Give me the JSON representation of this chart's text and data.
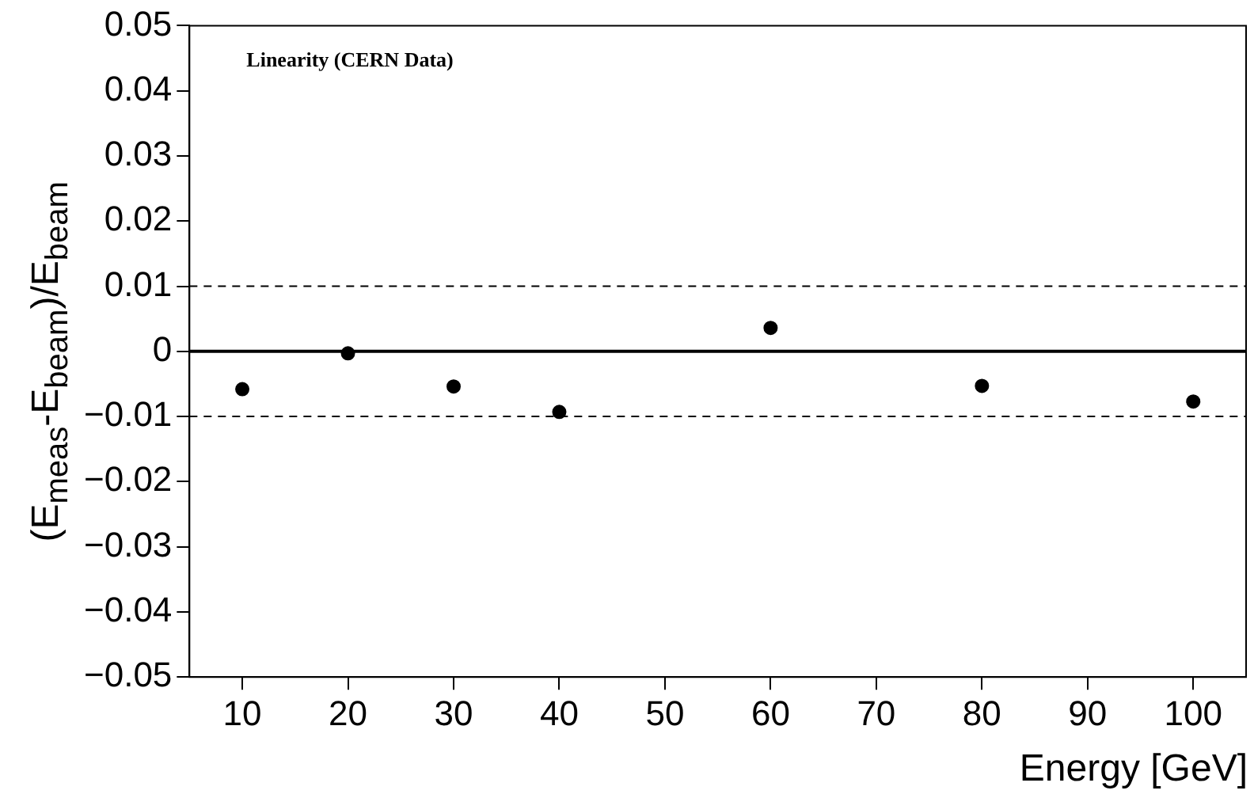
{
  "chart_data": {
    "type": "scatter",
    "xlabel": "Energy [GeV]",
    "ylabel": "(E$_{meas}$-E$_{beam}$)/E$_{beam}$",
    "annotations": [
      "Linearity (CERN Data)"
    ],
    "x": [
      10,
      20,
      30,
      40,
      60,
      80,
      100
    ],
    "values": [
      -0.0058,
      -0.0003,
      -0.0054,
      -0.0093,
      0.0036,
      -0.0053,
      -0.0077
    ],
    "errors": [
      0.0003,
      0.0002,
      0.0003,
      0.0003,
      0.0008,
      0.0008,
      0.0008
    ],
    "color": "#000000",
    "marker": "circle",
    "xlim": [
      5,
      105
    ],
    "xticks": [
      10,
      20,
      30,
      40,
      50,
      60,
      70,
      80,
      90,
      100
    ],
    "ylim": [
      -0.05,
      0.05
    ],
    "yticks": [
      -0.05,
      -0.04,
      -0.03,
      -0.02,
      -0.01,
      0,
      0.01,
      0.02,
      0.03,
      0.04,
      0.05
    ],
    "ref_lines": [
      {
        "axis": "y",
        "value": 0.01,
        "line_style": "dashed"
      },
      {
        "axis": "y",
        "value": 0,
        "line_style": "solid"
      },
      {
        "axis": "y",
        "value": -0.01,
        "line_style": "dashed"
      }
    ],
    "grid": false,
    "legend": false
  }
}
